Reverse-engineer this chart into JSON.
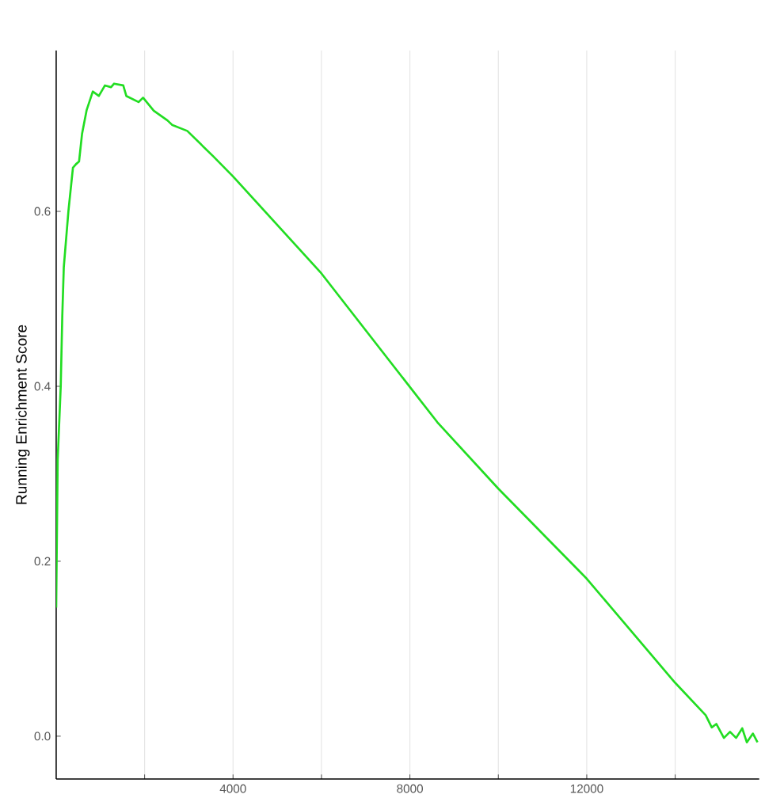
{
  "chart_data": {
    "type": "line",
    "ylabel": "Running Enrichment Score",
    "x": [
      0,
      34,
      103,
      138,
      172,
      276,
      379,
      448,
      517,
      586,
      690,
      828,
      965,
      1103,
      1241,
      1310,
      1517,
      1586,
      1862,
      1965,
      2207,
      2517,
      2620,
      2965,
      3551,
      4000,
      6000,
      8620,
      10000,
      12000,
      14000,
      14689,
      14827,
      14930,
      15102,
      15240,
      15378,
      15516,
      15620,
      15758,
      15862
    ],
    "series": [
      {
        "color": "#22dd22",
        "values": [
          0.147,
          0.316,
          0.4,
          0.48,
          0.536,
          0.6,
          0.65,
          0.654,
          0.657,
          0.689,
          0.716,
          0.737,
          0.732,
          0.744,
          0.742,
          0.746,
          0.744,
          0.732,
          0.725,
          0.73,
          0.715,
          0.704,
          0.699,
          0.692,
          0.663,
          0.64,
          0.529,
          0.359,
          0.283,
          0.18,
          0.061,
          0.024,
          0.01,
          0.014,
          -0.002,
          0.005,
          -0.002,
          0.009,
          -0.007,
          0.003,
          -0.007
        ]
      }
    ],
    "xlim": [
      0,
      15900
    ],
    "ylim": [
      -0.049,
      0.784
    ],
    "xticks": [
      {
        "value": 2000,
        "label": null
      },
      4000,
      {
        "value": 6000,
        "label": null
      },
      8000,
      {
        "value": 10000,
        "label": null
      },
      12000,
      {
        "value": 14000,
        "label": null
      }
    ],
    "yticks": [
      {
        "value": 0,
        "label": "0.0"
      },
      {
        "value": 0.2,
        "label": "0.2"
      },
      {
        "value": 0.4,
        "label": "0.4"
      },
      {
        "value": 0.6,
        "label": "0.6"
      }
    ],
    "grid": "x",
    "line_style": "solid"
  }
}
